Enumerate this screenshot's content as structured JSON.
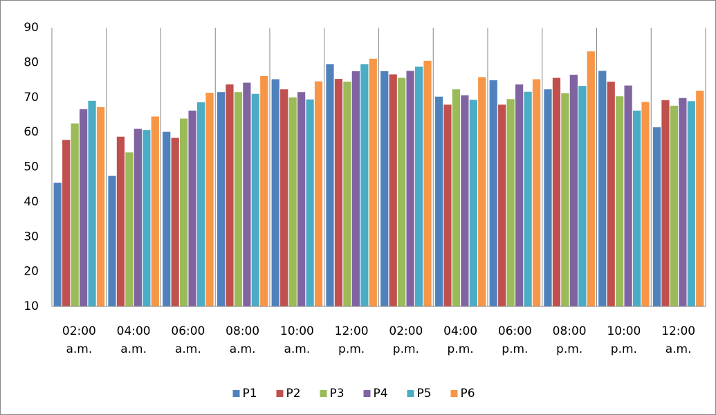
{
  "chart_data": {
    "type": "bar",
    "categories": [
      "02:00 a.m.",
      "04:00 a.m.",
      "06:00 a.m.",
      "08:00 a.m.",
      "10:00 a.m.",
      "12:00 p.m.",
      "02:00 p.m.",
      "04:00 p.m.",
      "06:00 p.m.",
      "08:00 p.m.",
      "10:00 p.m.",
      "12:00 a.m."
    ],
    "series": [
      {
        "name": "P1",
        "color": "#4f81bd",
        "values": [
          45.5,
          47.5,
          60.1,
          71.5,
          75.2,
          79.5,
          77.5,
          70.2,
          74.9,
          72.3,
          77.6,
          61.4
        ]
      },
      {
        "name": "P2",
        "color": "#c0504d",
        "values": [
          57.8,
          58.7,
          58.4,
          73.7,
          72.3,
          75.3,
          76.6,
          67.9,
          67.9,
          75.6,
          74.5,
          69.2
        ]
      },
      {
        "name": "P3",
        "color": "#9bbb59",
        "values": [
          62.5,
          54.2,
          63.9,
          71.5,
          70.0,
          74.5,
          75.6,
          72.3,
          69.5,
          71.2,
          70.3,
          67.6
        ]
      },
      {
        "name": "P4",
        "color": "#8064a2",
        "values": [
          66.6,
          61.0,
          66.2,
          74.2,
          71.5,
          77.5,
          77.6,
          70.6,
          73.7,
          76.5,
          73.4,
          69.8
        ]
      },
      {
        "name": "P5",
        "color": "#4bacc6",
        "values": [
          69.0,
          60.6,
          68.6,
          71.0,
          69.4,
          79.5,
          78.8,
          69.3,
          71.6,
          73.3,
          66.2,
          68.9
        ]
      },
      {
        "name": "P6",
        "color": "#f79646",
        "values": [
          67.2,
          64.5,
          71.3,
          76.1,
          74.6,
          81.1,
          80.5,
          75.8,
          75.2,
          83.2,
          68.7,
          71.9
        ]
      }
    ],
    "ylim": [
      10,
      90
    ],
    "yticks": [
      10,
      20,
      30,
      40,
      50,
      60,
      70,
      80,
      90
    ],
    "legend": "bottom"
  }
}
